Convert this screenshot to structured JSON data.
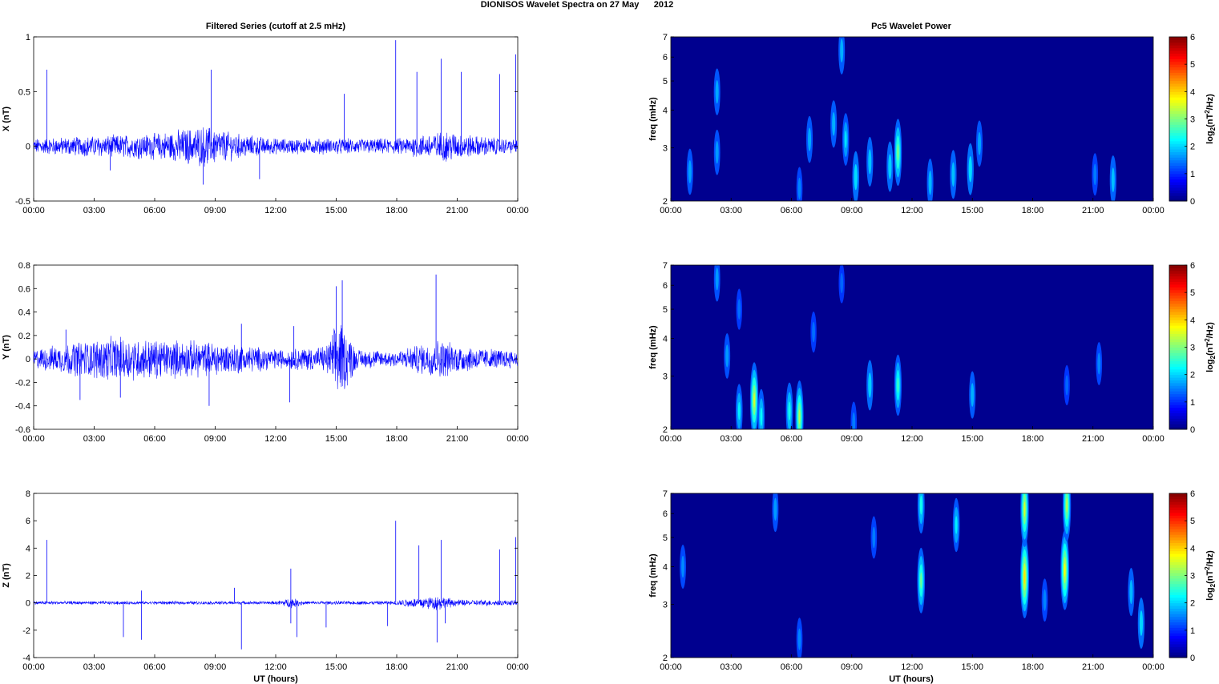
{
  "figure_title": "DIONISOS Wavelet Spectra on 27 May      2012",
  "left_column_title": "Filtered Series (cutoff at 2.5 mHz)",
  "right_column_title": "Pc5 Wavelet Power",
  "xlabel": "UT (hours)",
  "time_ticks": [
    "00:00",
    "03:00",
    "06:00",
    "09:00",
    "12:00",
    "15:00",
    "18:00",
    "21:00",
    "00:00"
  ],
  "colors": {
    "trace": "#0000ff",
    "background_power": "#00008f"
  },
  "chart_data": [
    {
      "type": "line",
      "component": "X",
      "ylabel": "X (nT)",
      "xlim": [
        0,
        24
      ],
      "ylim": [
        -0.5,
        1
      ],
      "yticks": [
        -0.5,
        0,
        0.5,
        1
      ],
      "ytick_labels": [
        "-0.5",
        "0",
        "0.5",
        "1"
      ],
      "noise_envelope": [
        [
          0,
          0.06
        ],
        [
          3,
          0.08
        ],
        [
          6,
          0.1
        ],
        [
          8.5,
          0.16
        ],
        [
          10,
          0.1
        ],
        [
          12,
          0.06
        ],
        [
          15,
          0.06
        ],
        [
          18,
          0.06
        ],
        [
          20.5,
          0.12
        ],
        [
          22,
          0.08
        ],
        [
          24,
          0.05
        ]
      ],
      "spikes": [
        [
          0.65,
          0.7
        ],
        [
          8.8,
          0.7
        ],
        [
          15.4,
          0.48
        ],
        [
          17.95,
          0.97
        ],
        [
          19,
          0.68
        ],
        [
          20.2,
          0.8
        ],
        [
          21.2,
          0.68
        ],
        [
          23.1,
          0.66
        ],
        [
          23.9,
          0.84
        ],
        [
          8.4,
          -0.35
        ],
        [
          11.2,
          -0.3
        ],
        [
          3.8,
          -0.22
        ]
      ]
    },
    {
      "type": "line",
      "component": "Y",
      "ylabel": "Y (nT)",
      "xlim": [
        0,
        24
      ],
      "ylim": [
        -0.6,
        0.8
      ],
      "yticks": [
        -0.6,
        -0.4,
        -0.2,
        0,
        0.2,
        0.4,
        0.6,
        0.8
      ],
      "ytick_labels": [
        "-0.6",
        "-0.4",
        "-0.2",
        "0",
        "0.2",
        "0.4",
        "0.6",
        "0.8"
      ],
      "noise_envelope": [
        [
          0,
          0.07
        ],
        [
          2,
          0.12
        ],
        [
          4,
          0.16
        ],
        [
          6,
          0.14
        ],
        [
          8,
          0.13
        ],
        [
          10,
          0.11
        ],
        [
          12,
          0.07
        ],
        [
          14.5,
          0.09
        ],
        [
          15.2,
          0.3
        ],
        [
          16,
          0.07
        ],
        [
          18,
          0.06
        ],
        [
          20,
          0.14
        ],
        [
          21.5,
          0.09
        ],
        [
          24,
          0.06
        ]
      ],
      "spikes": [
        [
          1.6,
          0.25
        ],
        [
          10.3,
          0.3
        ],
        [
          12.9,
          0.28
        ],
        [
          15,
          0.62
        ],
        [
          15.3,
          0.67
        ],
        [
          19.95,
          0.72
        ],
        [
          12.7,
          -0.37
        ],
        [
          8.7,
          -0.4
        ],
        [
          4.3,
          -0.33
        ],
        [
          2.3,
          -0.35
        ]
      ]
    },
    {
      "type": "line",
      "component": "Z",
      "ylabel": "Z (nT)",
      "xlim": [
        0,
        24
      ],
      "ylim": [
        -4,
        8
      ],
      "yticks": [
        -4,
        -2,
        0,
        2,
        4,
        6,
        8
      ],
      "ytick_labels": [
        "-4",
        "-2",
        "0",
        "2",
        "4",
        "6",
        "8"
      ],
      "noise_envelope": [
        [
          0,
          0.12
        ],
        [
          3,
          0.1
        ],
        [
          12,
          0.1
        ],
        [
          12.8,
          0.3
        ],
        [
          13.5,
          0.1
        ],
        [
          17.8,
          0.12
        ],
        [
          18.5,
          0.25
        ],
        [
          20,
          0.45
        ],
        [
          21,
          0.2
        ],
        [
          24,
          0.15
        ]
      ],
      "spikes": [
        [
          0.65,
          4.6
        ],
        [
          5.35,
          0.9
        ],
        [
          9.95,
          1.1
        ],
        [
          12.75,
          2.5
        ],
        [
          17.95,
          6
        ],
        [
          19.1,
          4.2
        ],
        [
          20.2,
          4.6
        ],
        [
          23.1,
          3.9
        ],
        [
          23.9,
          4.8
        ],
        [
          4.45,
          -2.5
        ],
        [
          5.35,
          -2.7
        ],
        [
          10.3,
          -3.4
        ],
        [
          13.05,
          -2.5
        ],
        [
          14.5,
          -1.8
        ],
        [
          17.55,
          -1.7
        ],
        [
          20,
          -2.9
        ],
        [
          20.4,
          -1.5
        ],
        [
          12.75,
          -1.5
        ]
      ]
    },
    {
      "type": "heatmap",
      "component": "X",
      "ylabel": "freq (mHz)",
      "xlim": [
        0,
        24
      ],
      "ylim": [
        2,
        7
      ],
      "yscale": "log",
      "yticks": [
        2,
        3,
        4,
        5,
        6,
        7
      ],
      "colorbar_label": "log2(nT2/Hz)",
      "colorbar_range": [
        0,
        6
      ],
      "colorbar_ticks": [
        "0",
        "1",
        "2",
        "3",
        "4",
        "5",
        "6"
      ],
      "blobs": [
        [
          0.95,
          2.5,
          0.75
        ],
        [
          2.3,
          2.9,
          0.7
        ],
        [
          2.3,
          4.6,
          0.8
        ],
        [
          6.4,
          2.2,
          0.55
        ],
        [
          6.9,
          3.2,
          0.8
        ],
        [
          8.1,
          3.6,
          0.85
        ],
        [
          8.5,
          6.3,
          0.85
        ],
        [
          8.7,
          3.2,
          1.2
        ],
        [
          9.2,
          2.4,
          1.15
        ],
        [
          9.9,
          2.7,
          1.0
        ],
        [
          10.9,
          2.6,
          1.05
        ],
        [
          11.3,
          2.9,
          2.2
        ],
        [
          12.9,
          2.3,
          0.9
        ],
        [
          14.05,
          2.45,
          0.95
        ],
        [
          14.9,
          2.55,
          1.15
        ],
        [
          15.35,
          3.1,
          0.75
        ],
        [
          21.1,
          2.45,
          0.5
        ],
        [
          22.0,
          2.35,
          0.95
        ]
      ]
    },
    {
      "type": "heatmap",
      "component": "Y",
      "ylabel": "freq (mHz)",
      "xlim": [
        0,
        24
      ],
      "ylim": [
        2,
        7
      ],
      "yscale": "log",
      "yticks": [
        2,
        3,
        4,
        5,
        6,
        7
      ],
      "colorbar_label": "log2(nT2/Hz)",
      "colorbar_range": [
        0,
        6
      ],
      "colorbar_ticks": [
        "0",
        "1",
        "2",
        "3",
        "4",
        "5",
        "6"
      ],
      "blobs": [
        [
          2.3,
          6.3,
          0.7
        ],
        [
          2.8,
          3.5,
          0.7
        ],
        [
          3.4,
          2.3,
          1.3
        ],
        [
          4.15,
          2.5,
          2.8
        ],
        [
          4.5,
          2.2,
          1.4
        ],
        [
          3.4,
          5.0,
          0.4
        ],
        [
          5.9,
          2.3,
          1.5
        ],
        [
          6.4,
          2.2,
          2.6
        ],
        [
          7.1,
          4.2,
          0.4
        ],
        [
          8.5,
          6.1,
          0.35
        ],
        [
          9.1,
          2.1,
          0.5
        ],
        [
          9.9,
          2.8,
          1.05
        ],
        [
          11.3,
          2.8,
          1.8
        ],
        [
          15.0,
          2.6,
          0.85
        ],
        [
          19.7,
          2.8,
          0.35
        ],
        [
          21.3,
          3.3,
          0.55
        ]
      ]
    },
    {
      "type": "heatmap",
      "component": "Z",
      "ylabel": "freq (mHz)",
      "xlim": [
        0,
        24
      ],
      "ylim": [
        2,
        7
      ],
      "yscale": "log",
      "yticks": [
        2,
        3,
        4,
        5,
        6,
        7
      ],
      "colorbar_label": "log2(nT2/Hz)",
      "colorbar_range": [
        0,
        6
      ],
      "colorbar_ticks": [
        "0",
        "1",
        "2",
        "3",
        "4",
        "5",
        "6"
      ],
      "blobs": [
        [
          0.6,
          4.0,
          0.6
        ],
        [
          5.2,
          6.2,
          0.7
        ],
        [
          6.4,
          2.3,
          0.55
        ],
        [
          10.1,
          5.0,
          0.5
        ],
        [
          12.45,
          3.6,
          2.1
        ],
        [
          12.45,
          6.4,
          1.5
        ],
        [
          14.2,
          5.5,
          1.3
        ],
        [
          17.6,
          3.7,
          3.3
        ],
        [
          17.6,
          6.2,
          2.8
        ],
        [
          18.6,
          3.1,
          0.55
        ],
        [
          19.6,
          3.9,
          3.1
        ],
        [
          19.7,
          6.4,
          2.6
        ],
        [
          22.9,
          3.3,
          0.9
        ],
        [
          23.4,
          2.6,
          1.1
        ]
      ]
    }
  ]
}
